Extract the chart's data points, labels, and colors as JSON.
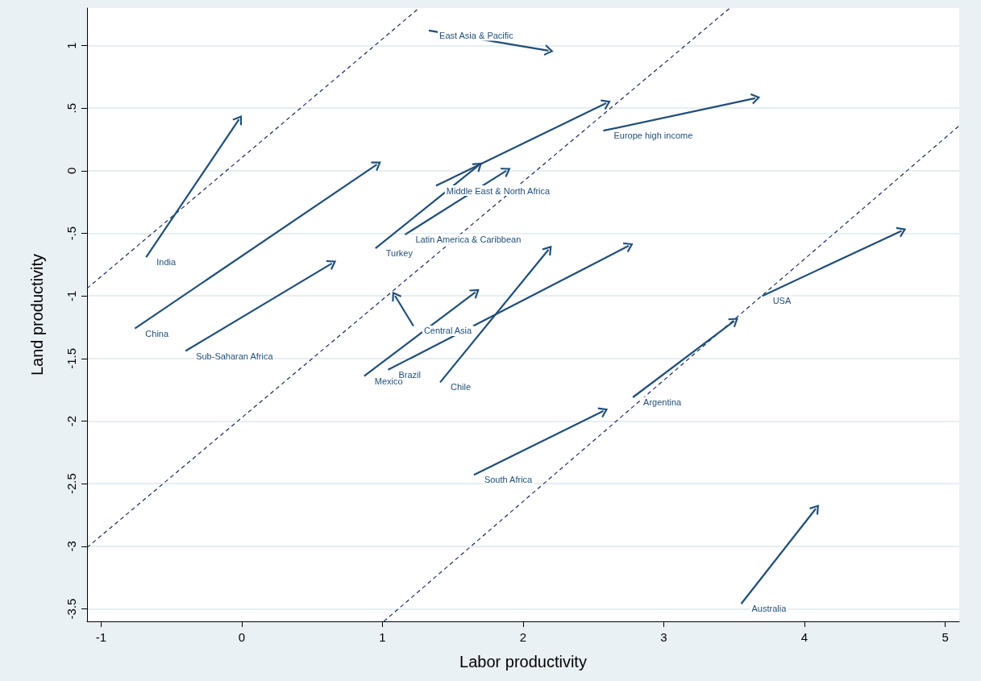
{
  "chart_data": {
    "type": "line",
    "xlabel": "Labor productivity",
    "ylabel": "Land productivity",
    "xlim": [
      -1.1,
      5.1
    ],
    "xticks": [
      -1,
      0,
      1,
      2,
      3,
      4,
      5
    ],
    "ylim": [
      -3.6,
      1.3
    ],
    "yticks": [
      {
        "value": -3.5,
        "label": "-3.5"
      },
      -3,
      {
        "value": -2.5,
        "label": "-2.5"
      },
      -2,
      {
        "value": -1.5,
        "label": "-1.5"
      },
      -1,
      {
        "value": -0.5,
        "label": "-.5"
      },
      0,
      {
        "value": 0.5,
        "label": ".5"
      },
      1
    ],
    "grid": "y",
    "legend": false,
    "series": [
      {
        "x": [
          -1.1,
          1.26
        ],
        "values": [
          -0.94,
          1.3
        ],
        "color": "#1a2a5e",
        "line_style": "dashed"
      },
      {
        "x": [
          -1.1,
          3.47
        ],
        "values": [
          -3.01,
          1.3
        ],
        "color": "#1a2a5e",
        "line_style": "dashed"
      },
      {
        "x": [
          1.01,
          5.1
        ],
        "values": [
          -3.6,
          0.36
        ],
        "color": "#1a2a5e",
        "line_style": "dashed"
      },
      {
        "name": "East Asia & Pacific",
        "x": [
          1.33,
          2.18
        ],
        "values": [
          1.12,
          0.96
        ],
        "color": "#1f4e79",
        "line_style": "solid"
      },
      {
        "name": "India",
        "x": [
          -0.68,
          -0.02
        ],
        "values": [
          -0.69,
          0.41
        ],
        "color": "#1f4e79",
        "line_style": "solid"
      },
      {
        "name": "China",
        "x": [
          -0.76,
          0.96
        ],
        "values": [
          -1.26,
          0.05
        ],
        "color": "#1f4e79",
        "line_style": "solid"
      },
      {
        "name": "Sub-Saharan Africa",
        "x": [
          -0.4,
          0.64
        ],
        "values": [
          -1.44,
          -0.74
        ],
        "color": "#1f4e79",
        "line_style": "solid"
      },
      {
        "name": "Turkey",
        "x": [
          0.95,
          1.68
        ],
        "values": [
          -0.62,
          0.04
        ],
        "color": "#1f4e79",
        "line_style": "solid"
      },
      {
        "name": "Middle East & North Africa",
        "x": [
          1.38,
          2.59
        ],
        "values": [
          -0.12,
          0.54
        ],
        "color": "#1f4e79",
        "line_style": "solid"
      },
      {
        "name": "Latin America & Caribbean",
        "x": [
          1.16,
          1.88
        ],
        "values": [
          -0.51,
          0.0
        ],
        "color": "#1f4e79",
        "line_style": "solid"
      },
      {
        "name": "Europe high income",
        "x": [
          2.57,
          3.65
        ],
        "values": [
          0.32,
          0.58
        ],
        "color": "#1f4e79",
        "line_style": "solid"
      },
      {
        "name": "Central Asia",
        "x": [
          1.22,
          1.09
        ],
        "values": [
          -1.24,
          -1.0
        ],
        "color": "#1f4e79",
        "line_style": "solid"
      },
      {
        "name": "Mexico",
        "x": [
          0.87,
          1.66
        ],
        "values": [
          -1.64,
          -0.97
        ],
        "color": "#1f4e79",
        "line_style": "solid"
      },
      {
        "name": "Brazil",
        "x": [
          1.04,
          2.75
        ],
        "values": [
          -1.59,
          -0.6
        ],
        "color": "#1f4e79",
        "line_style": "solid"
      },
      {
        "name": "Chile",
        "x": [
          1.41,
          2.18
        ],
        "values": [
          -1.69,
          -0.63
        ],
        "color": "#1f4e79",
        "line_style": "solid"
      },
      {
        "name": "USA",
        "x": [
          3.7,
          4.69
        ],
        "values": [
          -1.0,
          -0.48
        ],
        "color": "#1f4e79",
        "line_style": "solid"
      },
      {
        "name": "Argentina",
        "x": [
          2.78,
          3.5
        ],
        "values": [
          -1.81,
          -1.2
        ],
        "color": "#1f4e79",
        "line_style": "solid"
      },
      {
        "name": "South Africa",
        "x": [
          1.65,
          2.57
        ],
        "values": [
          -2.43,
          -1.92
        ],
        "color": "#1f4e79",
        "line_style": "solid"
      },
      {
        "name": "Australia",
        "x": [
          3.55,
          4.08
        ],
        "values": [
          -3.46,
          -2.7
        ],
        "color": "#1f4e79",
        "line_style": "solid"
      }
    ]
  }
}
